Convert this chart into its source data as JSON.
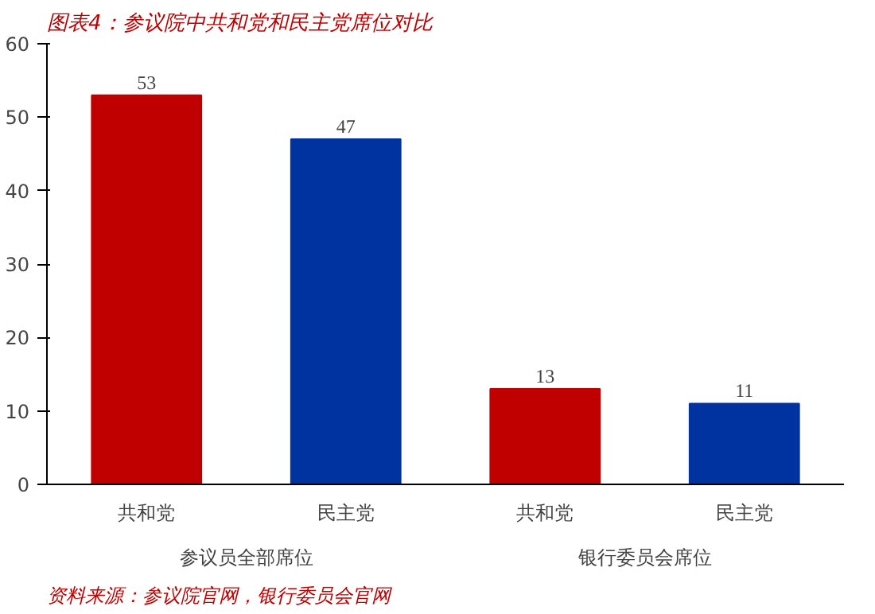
{
  "chart_data": {
    "type": "bar",
    "title": "图表4：参议院中共和党和民主党席位对比",
    "categories": [
      "共和党",
      "民主党",
      "共和党",
      "民主党"
    ],
    "values": [
      53,
      47,
      13,
      11
    ],
    "colors": [
      "#c00000",
      "#0033a0",
      "#c00000",
      "#0033a0"
    ],
    "ylim": [
      0,
      60
    ],
    "yticks": [
      0,
      10,
      20,
      30,
      40,
      50,
      60
    ],
    "grid": false,
    "data_labels": true,
    "annotations": [
      "参议员全部席位",
      "银行委员会席位",
      "资料来源：参议院官网，银行委员会官网"
    ]
  }
}
